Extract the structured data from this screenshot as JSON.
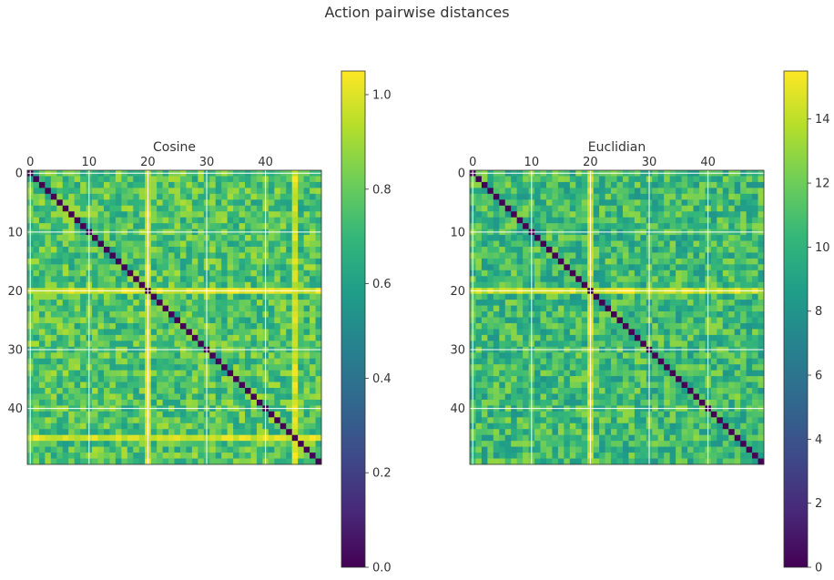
{
  "figure_title": "Action pairwise distances",
  "colors": {
    "viridis": [
      "#440154",
      "#482878",
      "#3e4a89",
      "#31688e",
      "#26828e",
      "#1f9e89",
      "#35b779",
      "#6ece58",
      "#b5de2b",
      "#fde725"
    ],
    "grid": "#ffffff",
    "frame": "#333333",
    "text": "#333333"
  },
  "chart_data": [
    {
      "type": "heatmap",
      "title": "Cosine",
      "size": 50,
      "xlabel": "",
      "ylabel": "",
      "xticks": [
        0,
        10,
        20,
        30,
        40
      ],
      "yticks": [
        0,
        10,
        20,
        30,
        40
      ],
      "tick_labels": [
        "0",
        "10",
        "20",
        "30",
        "40"
      ],
      "value_range": [
        0.0,
        1.05
      ],
      "diagonal_value": 0.0,
      "typical_value": 0.75,
      "bright_rows": [
        20,
        45
      ],
      "colorbar": {
        "ticks": [
          0.0,
          0.2,
          0.4,
          0.6,
          0.8,
          1.0
        ],
        "labels": [
          "0.0",
          "0.2",
          "0.4",
          "0.6",
          "0.8",
          "1.0"
        ]
      },
      "grid": true
    },
    {
      "type": "heatmap",
      "title": "Euclidian",
      "size": 50,
      "xlabel": "",
      "ylabel": "",
      "xticks": [
        0,
        10,
        20,
        30,
        40
      ],
      "yticks": [
        0,
        10,
        20,
        30,
        40
      ],
      "tick_labels": [
        "0",
        "10",
        "20",
        "30",
        "40"
      ],
      "value_range": [
        0,
        15.5
      ],
      "diagonal_value": 0,
      "typical_value": 10.5,
      "bright_rows": [
        20
      ],
      "colorbar": {
        "ticks": [
          0,
          2,
          4,
          6,
          8,
          10,
          12,
          14
        ],
        "labels": [
          "0",
          "2",
          "4",
          "6",
          "8",
          "10",
          "12",
          "14"
        ]
      },
      "grid": true
    }
  ]
}
